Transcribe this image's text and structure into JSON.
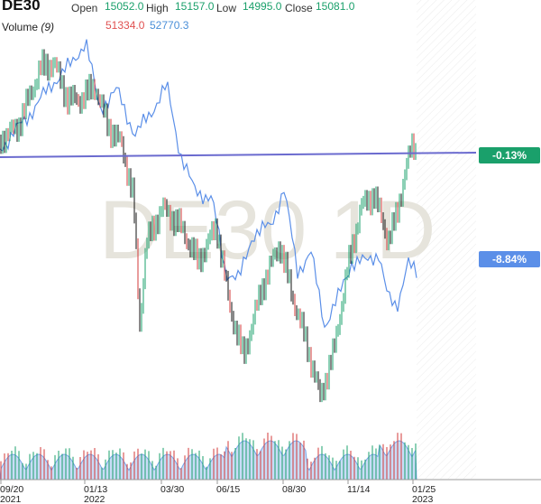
{
  "header": {
    "symbol": "DE30",
    "open_label": "Open",
    "open_value": "15052.0",
    "high_label": "High",
    "high_value": "15157.0",
    "low_label": "Low",
    "low_value": "14995.0",
    "close_label": "Close",
    "close_value": "15081.0"
  },
  "volume": {
    "title": "Volume",
    "period": "(9)",
    "value_a": "51334.0",
    "value_b": "52770.3"
  },
  "watermark": "DE30 1D",
  "badges": {
    "green": "-0.13%",
    "blue": "-8.84%"
  },
  "colors": {
    "up": "#1aa06b",
    "down": "#d33a3a",
    "compare_line": "#5b8fe8",
    "reference_line": "#6b6bcf",
    "volume_fill": "#bcd3f5"
  },
  "chart_data": {
    "type": "candlestick",
    "x_ticks": [
      {
        "line1": "09/20",
        "line2": "2021"
      },
      {
        "line1": "01/13",
        "line2": "2022"
      },
      {
        "line1": "03/30",
        "line2": ""
      },
      {
        "line1": "06/15",
        "line2": ""
      },
      {
        "line1": "08/30",
        "line2": ""
      },
      {
        "line1": "11/14",
        "line2": ""
      },
      {
        "line1": "01/25",
        "line2": "2023"
      }
    ]
  }
}
